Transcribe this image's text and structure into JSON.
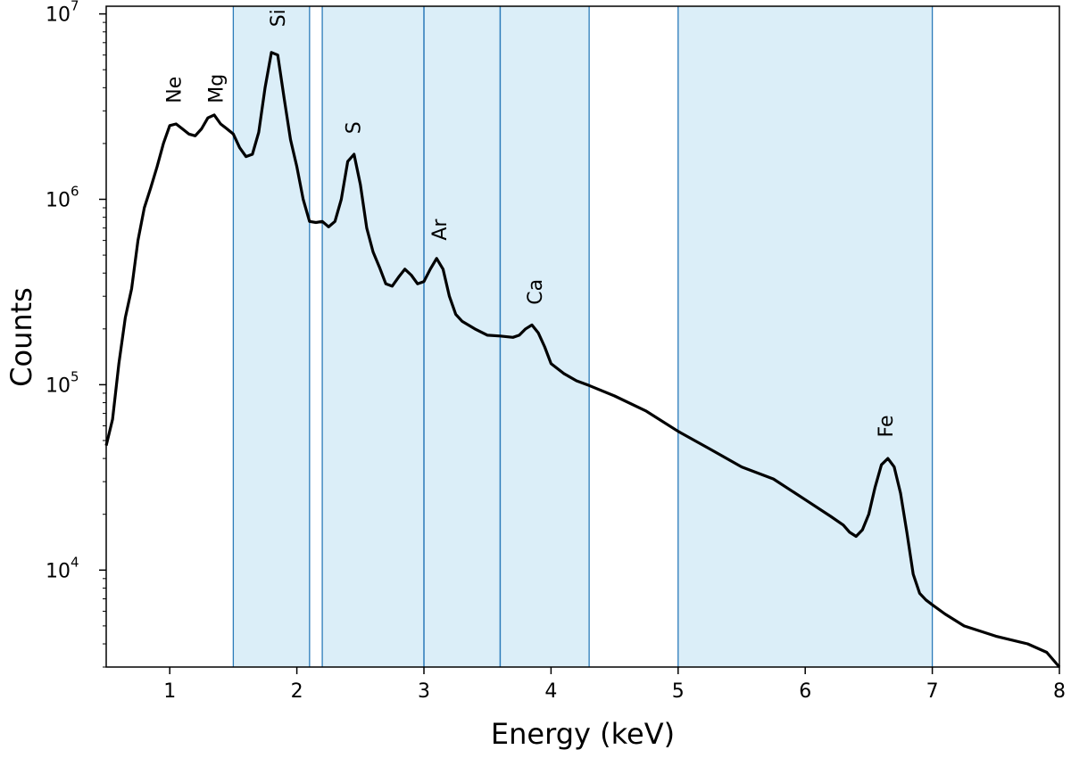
{
  "chart_data": {
    "type": "line",
    "xlabel": "Energy (keV)",
    "ylabel": "Counts",
    "xlim": [
      0.5,
      8
    ],
    "ylim": [
      3000,
      11000000
    ],
    "yscale": "log",
    "x_ticks": [
      {
        "value": 1,
        "label": "1"
      },
      {
        "value": 2,
        "label": "2"
      },
      {
        "value": 3,
        "label": "3"
      },
      {
        "value": 4,
        "label": "4"
      },
      {
        "value": 5,
        "label": "5"
      },
      {
        "value": 6,
        "label": "6"
      },
      {
        "value": 7,
        "label": "7"
      },
      {
        "value": 8,
        "label": "8"
      }
    ],
    "y_ticks": [
      {
        "value": 10000,
        "base": "10",
        "exp": "4"
      },
      {
        "value": 100000,
        "base": "10",
        "exp": "5"
      },
      {
        "value": 1000000,
        "base": "10",
        "exp": "6"
      },
      {
        "value": 10000000,
        "base": "10",
        "exp": "7"
      }
    ],
    "bands": [
      [
        1.5,
        2.1
      ],
      [
        2.2,
        3.0
      ],
      [
        3.0,
        3.6
      ],
      [
        3.6,
        4.3
      ],
      [
        5.0,
        7.0
      ]
    ],
    "band_color": "#dbeef8",
    "band_edge_color": "#2b7bba",
    "line_color": "#000000",
    "line_labels": [
      {
        "text": "Ne",
        "x": 1.03,
        "y": 3300000
      },
      {
        "text": "Mg",
        "x": 1.36,
        "y": 3300000
      },
      {
        "text": "Si",
        "x": 1.85,
        "y": 8500000
      },
      {
        "text": "S",
        "x": 2.44,
        "y": 2250000
      },
      {
        "text": "Ar",
        "x": 3.12,
        "y": 600000
      },
      {
        "text": "Ca",
        "x": 3.87,
        "y": 270000
      },
      {
        "text": "Fe",
        "x": 6.63,
        "y": 52000
      }
    ],
    "series": [
      {
        "x": [
          0.5,
          0.55,
          0.6,
          0.65,
          0.7,
          0.75,
          0.8,
          0.85,
          0.9,
          0.95,
          1.0,
          1.05,
          1.1,
          1.15,
          1.2,
          1.25,
          1.3,
          1.35,
          1.4,
          1.45,
          1.5,
          1.55,
          1.6,
          1.65,
          1.7,
          1.75,
          1.8,
          1.85,
          1.9,
          1.95,
          2.0,
          2.05,
          2.1,
          2.15,
          2.2,
          2.25,
          2.3,
          2.35,
          2.4,
          2.45,
          2.5,
          2.55,
          2.6,
          2.65,
          2.7,
          2.75,
          2.8,
          2.85,
          2.9,
          2.95,
          3.0,
          3.05,
          3.1,
          3.15,
          3.2,
          3.25,
          3.3,
          3.4,
          3.5,
          3.6,
          3.7,
          3.75,
          3.8,
          3.85,
          3.9,
          3.95,
          4.0,
          4.1,
          4.2,
          4.3,
          4.5,
          4.75,
          5.0,
          5.25,
          5.5,
          5.75,
          6.0,
          6.2,
          6.3,
          6.35,
          6.4,
          6.45,
          6.5,
          6.55,
          6.6,
          6.65,
          6.7,
          6.75,
          6.8,
          6.85,
          6.9,
          6.95,
          7.0,
          7.1,
          7.25,
          7.5,
          7.75,
          7.9,
          8.0
        ],
        "y": [
          47000,
          65000,
          130000,
          230000,
          330000,
          600000,
          900000,
          1150000,
          1500000,
          2000000,
          2500000,
          2550000,
          2400000,
          2250000,
          2200000,
          2400000,
          2750000,
          2850000,
          2550000,
          2400000,
          2250000,
          1900000,
          1700000,
          1750000,
          2300000,
          4000000,
          6200000,
          6000000,
          3500000,
          2100000,
          1500000,
          1000000,
          760000,
          750000,
          760000,
          710000,
          760000,
          1000000,
          1600000,
          1750000,
          1200000,
          700000,
          520000,
          430000,
          350000,
          340000,
          380000,
          420000,
          390000,
          350000,
          360000,
          420000,
          480000,
          420000,
          300000,
          240000,
          220000,
          200000,
          185000,
          183000,
          180000,
          185000,
          200000,
          210000,
          190000,
          160000,
          130000,
          115000,
          105000,
          99000,
          87000,
          72000,
          56000,
          45000,
          36000,
          31000,
          24000,
          19500,
          17500,
          16000,
          15200,
          16500,
          20000,
          28000,
          37000,
          40000,
          36000,
          26000,
          16000,
          9500,
          7500,
          6900,
          6500,
          5800,
          5000,
          4400,
          4000,
          3600,
          3000
        ]
      }
    ]
  }
}
